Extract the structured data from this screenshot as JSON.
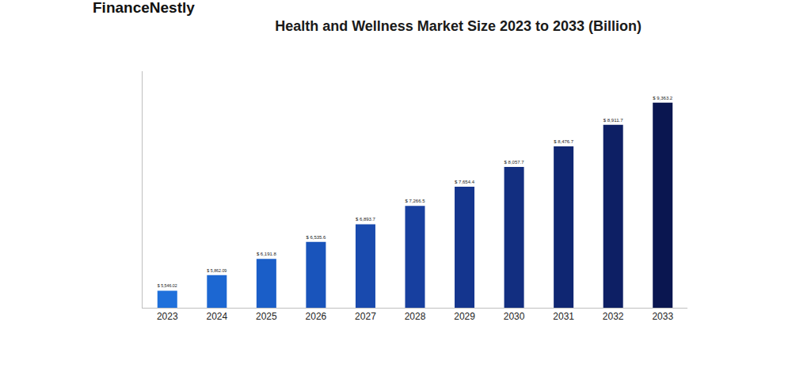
{
  "chart_data": {
    "type": "bar",
    "title": "Health and Wellness Market Size 2023 to 2033 (Billion)",
    "annotations": [
      "FinanceNestly"
    ],
    "categories": [
      "2023",
      "2024",
      "2025",
      "2026",
      "2027",
      "2028",
      "2029",
      "2030",
      "2031",
      "2032",
      "2033"
    ],
    "values": [
      5546.02,
      5862.09,
      6191.8,
      6535.6,
      6893.7,
      7266.5,
      7654.4,
      8057.7,
      8476.7,
      8911.7,
      9363.2
    ],
    "value_labels": [
      "$ 5,546.02",
      "$ 5,862.09",
      "$ 6,191.8",
      "$ 6,535.6",
      "$ 6,893.7",
      "$ 7,266.5",
      "$ 7,654.4",
      "$ 8,057.7",
      "$ 8,476.7",
      "$ 8,911.7",
      "$ 9,363.2"
    ],
    "colors": [
      "#1f70db",
      "#1c67d2",
      "#1a5ec8",
      "#1954bb",
      "#194aae",
      "#173f9f",
      "#14358e",
      "#122e80",
      "#0f2672",
      "#0d1f64",
      "#0a1650"
    ],
    "ylim": [
      5200,
      10000
    ],
    "data_labels": true,
    "tick_labels": "x",
    "grid": false
  }
}
